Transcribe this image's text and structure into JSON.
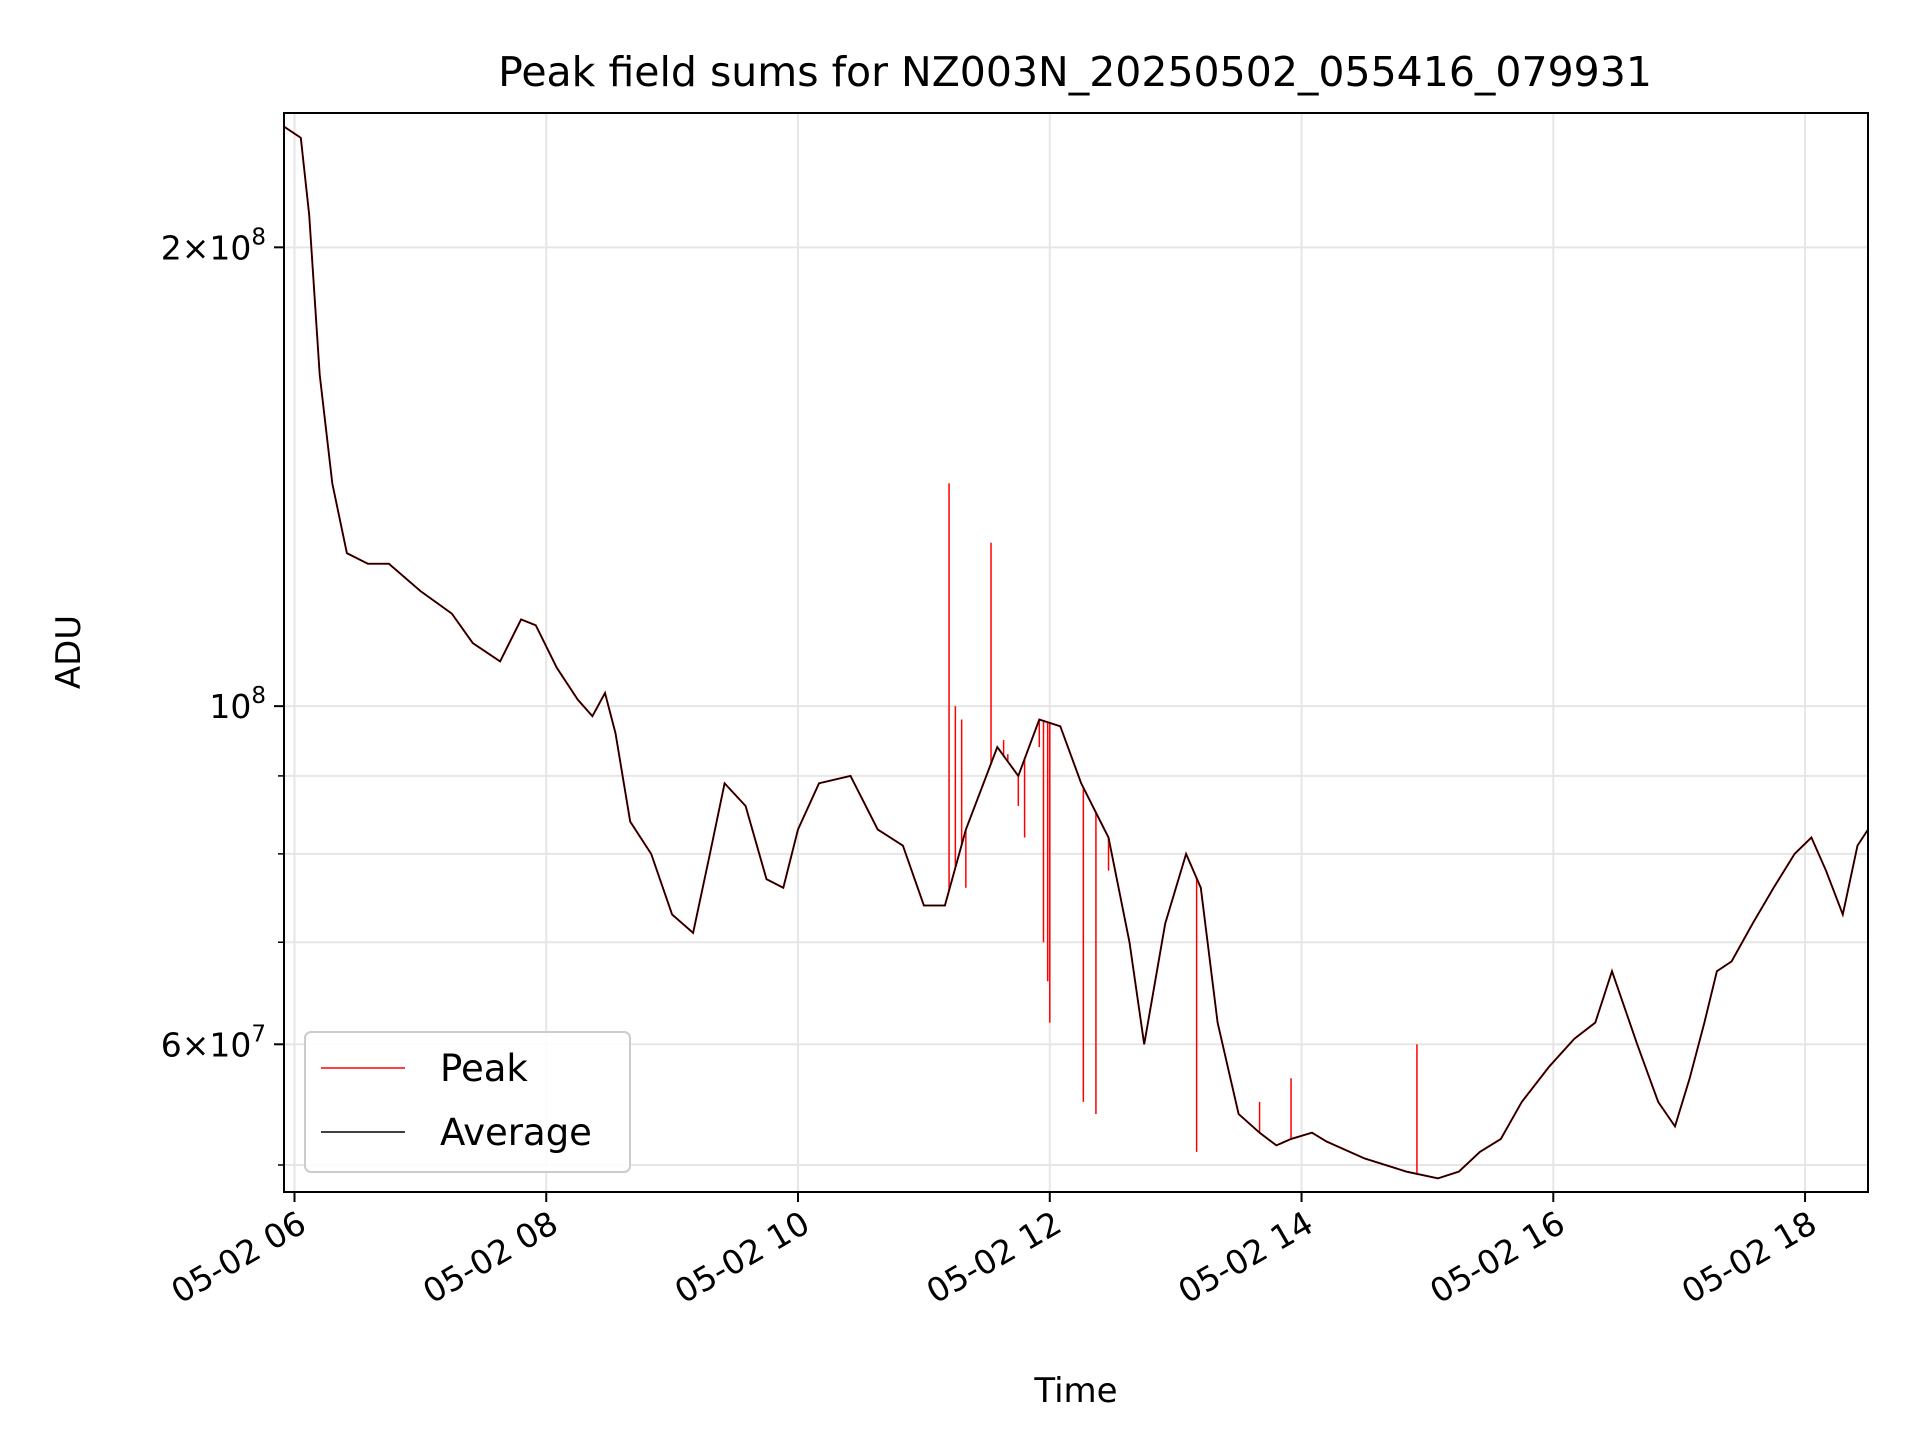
{
  "chart_data": {
    "type": "line",
    "title": "Peak field sums for NZ003N_20250502_055416_079931",
    "xlabel": "Time",
    "ylabel": "ADU",
    "x_axis": "datetime",
    "x_range": [
      "05-02 05:55",
      "05-02 18:30"
    ],
    "y_scale": "log",
    "ylim": [
      48000000,
      245000000
    ],
    "grid": true,
    "legend_position": "lower-left",
    "x_ticks": [
      "05-02 06:00",
      "05-02 08:00",
      "05-02 10:00",
      "05-02 12:00",
      "05-02 14:00",
      "05-02 16:00",
      "05-02 18:00"
    ],
    "x_tick_labels": [
      "05-02 06",
      "05-02 08",
      "05-02 10",
      "05-02 12",
      "05-02 14",
      "05-02 16",
      "05-02 18"
    ],
    "y_ticks": [
      {
        "value": 200000000,
        "mantissa": "2",
        "exp": "8"
      },
      {
        "value": 100000000,
        "mantissa": "",
        "exp": "8"
      },
      {
        "value": 60000000,
        "mantissa": "6",
        "exp": "7"
      }
    ],
    "y_minor_ticks": [
      50000000,
      70000000,
      80000000,
      90000000
    ],
    "series": [
      {
        "name": "Peak",
        "color": "#ff0000",
        "spikes": [
          {
            "x": "05-02 11:12",
            "y": 140000000
          },
          {
            "x": "05-02 11:15",
            "y": 100000000
          },
          {
            "x": "05-02 11:18",
            "y": 98000000
          },
          {
            "x": "05-02 11:20",
            "y": 76000000
          },
          {
            "x": "05-02 11:32",
            "y": 128000000
          },
          {
            "x": "05-02 11:38",
            "y": 95000000
          },
          {
            "x": "05-02 11:40",
            "y": 93000000
          },
          {
            "x": "05-02 11:45",
            "y": 86000000
          },
          {
            "x": "05-02 11:48",
            "y": 82000000
          },
          {
            "x": "05-02 11:55",
            "y": 94000000
          },
          {
            "x": "05-02 11:57",
            "y": 70000000
          },
          {
            "x": "05-02 11:59",
            "y": 66000000
          },
          {
            "x": "05-02 12:00",
            "y": 62000000
          },
          {
            "x": "05-02 12:16",
            "y": 55000000
          },
          {
            "x": "05-02 12:22",
            "y": 54000000
          },
          {
            "x": "05-02 12:28",
            "y": 78000000
          },
          {
            "x": "05-02 13:10",
            "y": 51000000
          },
          {
            "x": "05-02 13:40",
            "y": 55000000
          },
          {
            "x": "05-02 13:55",
            "y": 57000000
          },
          {
            "x": "05-02 14:55",
            "y": 60000000
          }
        ]
      },
      {
        "name": "Average",
        "color": "#000000",
        "points": [
          [
            "05-02 05:55",
            240000000
          ],
          [
            "05-02 06:03",
            236000000
          ],
          [
            "05-02 06:07",
            210000000
          ],
          [
            "05-02 06:12",
            165000000
          ],
          [
            "05-02 06:18",
            140000000
          ],
          [
            "05-02 06:25",
            126000000
          ],
          [
            "05-02 06:35",
            124000000
          ],
          [
            "05-02 06:45",
            124000000
          ],
          [
            "05-02 07:00",
            119000000
          ],
          [
            "05-02 07:15",
            115000000
          ],
          [
            "05-02 07:25",
            110000000
          ],
          [
            "05-02 07:38",
            107000000
          ],
          [
            "05-02 07:48",
            114000000
          ],
          [
            "05-02 07:55",
            113000000
          ],
          [
            "05-02 08:05",
            106000000
          ],
          [
            "05-02 08:15",
            101000000
          ],
          [
            "05-02 08:22",
            98500000
          ],
          [
            "05-02 08:28",
            102000000
          ],
          [
            "05-02 08:33",
            96000000
          ],
          [
            "05-02 08:40",
            84000000
          ],
          [
            "05-02 08:50",
            80000000
          ],
          [
            "05-02 09:00",
            73000000
          ],
          [
            "05-02 09:10",
            71000000
          ],
          [
            "05-02 09:18",
            80000000
          ],
          [
            "05-02 09:25",
            89000000
          ],
          [
            "05-02 09:35",
            86000000
          ],
          [
            "05-02 09:45",
            77000000
          ],
          [
            "05-02 09:53",
            76000000
          ],
          [
            "05-02 10:00",
            83000000
          ],
          [
            "05-02 10:10",
            89000000
          ],
          [
            "05-02 10:25",
            90000000
          ],
          [
            "05-02 10:38",
            83000000
          ],
          [
            "05-02 10:50",
            81000000
          ],
          [
            "05-02 11:00",
            74000000
          ],
          [
            "05-02 11:10",
            74000000
          ],
          [
            "05-02 11:20",
            83000000
          ],
          [
            "05-02 11:35",
            94000000
          ],
          [
            "05-02 11:45",
            90000000
          ],
          [
            "05-02 11:55",
            98000000
          ],
          [
            "05-02 12:05",
            97000000
          ],
          [
            "05-02 12:15",
            89000000
          ],
          [
            "05-02 12:28",
            82000000
          ],
          [
            "05-02 12:38",
            70000000
          ],
          [
            "05-02 12:45",
            60000000
          ],
          [
            "05-02 12:55",
            72000000
          ],
          [
            "05-02 13:05",
            80000000
          ],
          [
            "05-02 13:12",
            76000000
          ],
          [
            "05-02 13:20",
            62000000
          ],
          [
            "05-02 13:30",
            54000000
          ],
          [
            "05-02 13:40",
            52500000
          ],
          [
            "05-02 13:48",
            51500000
          ],
          [
            "05-02 13:55",
            52000000
          ],
          [
            "05-02 14:05",
            52500000
          ],
          [
            "05-02 14:12",
            51800000
          ],
          [
            "05-02 14:30",
            50500000
          ],
          [
            "05-02 14:50",
            49500000
          ],
          [
            "05-02 15:05",
            49000000
          ],
          [
            "05-02 15:15",
            49500000
          ],
          [
            "05-02 15:25",
            51000000
          ],
          [
            "05-02 15:35",
            52000000
          ],
          [
            "05-02 15:45",
            55000000
          ],
          [
            "05-02 15:58",
            58000000
          ],
          [
            "05-02 16:10",
            60500000
          ],
          [
            "05-02 16:20",
            62000000
          ],
          [
            "05-02 16:28",
            67000000
          ],
          [
            "05-02 16:40",
            60000000
          ],
          [
            "05-02 16:50",
            55000000
          ],
          [
            "05-02 16:58",
            53000000
          ],
          [
            "05-02 17:05",
            57000000
          ],
          [
            "05-02 17:12",
            62000000
          ],
          [
            "05-02 17:18",
            67000000
          ],
          [
            "05-02 17:25",
            68000000
          ],
          [
            "05-02 17:35",
            72000000
          ],
          [
            "05-02 17:45",
            76000000
          ],
          [
            "05-02 17:55",
            80000000
          ],
          [
            "05-02 18:03",
            82000000
          ],
          [
            "05-02 18:10",
            78000000
          ],
          [
            "05-02 18:18",
            73000000
          ],
          [
            "05-02 18:25",
            81000000
          ],
          [
            "05-02 18:30",
            83000000
          ]
        ]
      }
    ]
  }
}
